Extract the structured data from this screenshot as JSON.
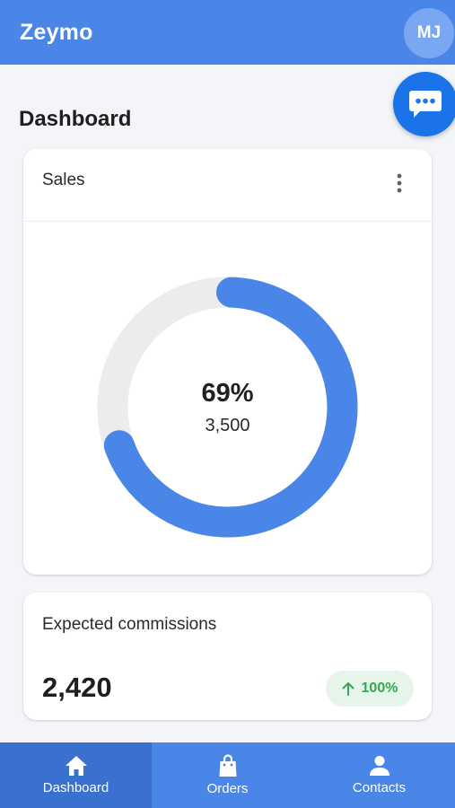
{
  "header": {
    "app_title": "Zeymo",
    "avatar_initials": "MJ",
    "chat_icon": "chat-bubble-icon"
  },
  "page": {
    "title": "Dashboard"
  },
  "sales_card": {
    "title": "Sales",
    "menu_icon": "more-vert-icon",
    "percent_label": "69%",
    "value_label": "3,500",
    "progress_fraction": 0.69,
    "track_color": "#ececef",
    "progress_color": "#4a86e8"
  },
  "commissions_card": {
    "title": "Expected commissions",
    "value": "2,420",
    "trend_icon": "arrow-up-icon",
    "trend_label": "100%",
    "trend_color": "#34a853"
  },
  "bottom_nav": {
    "items": [
      {
        "label": "Dashboard",
        "icon": "home-icon",
        "active": true
      },
      {
        "label": "Orders",
        "icon": "shopping-bag-icon",
        "active": false
      },
      {
        "label": "Contacts",
        "icon": "person-icon",
        "active": false
      }
    ]
  },
  "colors": {
    "brand": "#4a86e8",
    "fab": "#1a73e8",
    "background": "#f3f5f9"
  }
}
